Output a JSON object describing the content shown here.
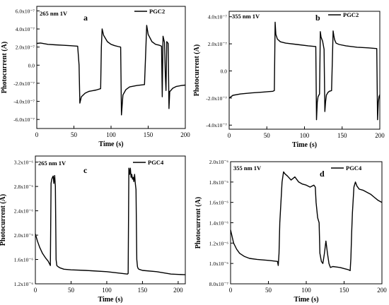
{
  "figure": {
    "panels": [
      {
        "panel_label": "a",
        "annotation": "265 nm 1V",
        "legend_label": "PGC2",
        "xlabel": "Time (s)",
        "ylabel": "Photocurrent (A)",
        "xticks": [
          "0",
          "50",
          "100",
          "150",
          "200"
        ],
        "yticks": [
          "-6.0x10⁻⁷",
          "-4.0x10⁻⁷",
          "-2.0x10⁻⁷",
          "0.0",
          "2.0x10⁻⁷",
          "4.0x10⁻⁷",
          "6.0x10⁻⁷"
        ]
      },
      {
        "panel_label": "b",
        "annotation": "355 nm 1V",
        "legend_label": "PGC2",
        "xlabel": "Time (s)",
        "ylabel": "Photocurrent (A)",
        "xticks": [
          "0",
          "50",
          "100",
          "150",
          "200"
        ],
        "yticks": [
          "-4.0x10⁻⁷",
          "-2.0x10⁻⁷",
          "0.0",
          "2.0x10⁻⁷",
          "4.0x10⁻⁷"
        ]
      },
      {
        "panel_label": "c",
        "annotation": "265 nm 1V",
        "legend_label": "PGC4",
        "xlabel": "Time (s)",
        "ylabel": "Photocurrent (A)",
        "xticks": [
          "0",
          "50",
          "100",
          "150",
          "200"
        ],
        "yticks": [
          "1.2x10⁻⁶",
          "1.6x10⁻⁶",
          "2.0x10⁻⁶",
          "2.4x10⁻⁶",
          "2.8x10⁻⁶",
          "3.2x10⁻⁶"
        ]
      },
      {
        "panel_label": "d",
        "annotation": "355 nm 1V",
        "legend_label": "PGC4",
        "xlabel": "Time (s)",
        "ylabel": "Photocurrent (A)",
        "xticks": [
          "0",
          "50",
          "100",
          "150",
          "200"
        ],
        "yticks": [
          "8.0x10⁻⁷",
          "1.0x10⁻⁶",
          "1.2x10⁻⁶",
          "1.4x10⁻⁶",
          "1.6x10⁻⁶",
          "1.8x10⁻⁶",
          "2.0x10⁻⁶"
        ]
      }
    ]
  },
  "chart_data": [
    {
      "type": "line",
      "panel": "a",
      "title": "",
      "xlabel": "Time (s)",
      "ylabel": "Photocurrent (A)",
      "xlim": [
        0,
        200
      ],
      "ylim": [
        -7e-07,
        6.5e-07
      ],
      "series": [
        {
          "name": "PGC2",
          "color": "#000000",
          "x": [
            0,
            5,
            15,
            25,
            35,
            45,
            55,
            57,
            58,
            60,
            65,
            70,
            80,
            86,
            87,
            88,
            90,
            95,
            100,
            105,
            110,
            113,
            114,
            116,
            120,
            125,
            135,
            145,
            147,
            148,
            150,
            155,
            160,
            165,
            168,
            169,
            170,
            172,
            173,
            174,
            175,
            177,
            178,
            179,
            180,
            183,
            188,
            195,
            200
          ],
          "y": [
            2.4e-07,
            2.45e-07,
            2.3e-07,
            2.25e-07,
            2.2e-07,
            2.15e-07,
            2.1e-07,
            0.0,
            -4.2e-07,
            -3.5e-07,
            -3.1e-07,
            -2.9e-07,
            -2.75e-07,
            -2.6e-07,
            2e-07,
            4e-07,
            3.3e-07,
            2.6e-07,
            2.3e-07,
            2.15e-07,
            2.05e-07,
            2e-07,
            -5.5e-07,
            -3.3e-07,
            -2.7e-07,
            -2.4e-07,
            -2.25e-07,
            -2.15e-07,
            2e-07,
            4.4e-07,
            3.4e-07,
            2.6e-07,
            2.3e-07,
            2.2e-07,
            2.1e-07,
            -3.5e-07,
            3.2e-07,
            2.5e-07,
            -1e-07,
            -2.8e-07,
            2.6e-07,
            2.4e-07,
            -4.8e-07,
            -2.9e-07,
            -2.85e-07,
            -2.55e-07,
            -2.35e-07,
            -2.25e-07,
            -2.2e-07
          ]
        }
      ]
    },
    {
      "type": "line",
      "panel": "b",
      "title": "",
      "xlabel": "Time (s)",
      "ylabel": "Photocurrent (A)",
      "xlim": [
        0,
        200
      ],
      "ylim": [
        -4.3e-07,
        4.4e-07
      ],
      "series": [
        {
          "name": "PGC2",
          "color": "#000000",
          "x": [
            0,
            5,
            15,
            30,
            45,
            58,
            60,
            61,
            62,
            64,
            68,
            75,
            90,
            105,
            115,
            116,
            117,
            118,
            120,
            121,
            122,
            124,
            126,
            127,
            128,
            129,
            131,
            133,
            136,
            138,
            139,
            140,
            142,
            146,
            155,
            170,
            185,
            196,
            197,
            198,
            199,
            200
          ],
          "y": [
            -2e-07,
            -1.8e-07,
            -1.7e-07,
            -1.62e-07,
            -1.56e-07,
            -1.5e-07,
            -1.45e-07,
            3.6e-07,
            2.7e-07,
            2.35e-07,
            2.15e-07,
            2.05e-07,
            1.95e-07,
            1.85e-07,
            1.8e-07,
            -3.6e-07,
            -2.3e-07,
            -1.9e-07,
            -1.7e-07,
            2.9e-07,
            2.5e-07,
            2.2e-07,
            1.6e-07,
            -3e-07,
            -2.3e-07,
            -1.8e-07,
            -1.6e-07,
            -1.5e-07,
            -1.45e-07,
            2.95e-07,
            2.6e-07,
            2.3e-07,
            2.05e-07,
            1.95e-07,
            1.85e-07,
            1.75e-07,
            1.7e-07,
            1.65e-07,
            -3.6e-07,
            -2.3e-07,
            -1.9e-07,
            -1.75e-07
          ]
        }
      ]
    },
    {
      "type": "line",
      "panel": "c",
      "title": "",
      "xlabel": "Time (s)",
      "ylabel": "Photocurrent (A)",
      "xlim": [
        0,
        210
      ],
      "ylim": [
        1.2e-06,
        3.3e-06
      ],
      "series": [
        {
          "name": "PGC4",
          "color": "#000000",
          "x": [
            0,
            3,
            6,
            10,
            14,
            18,
            21,
            22,
            23,
            24,
            25,
            26,
            27,
            28,
            29,
            30,
            31,
            32,
            35,
            40,
            50,
            70,
            100,
            129,
            130,
            131,
            132,
            133,
            134,
            135,
            136,
            137,
            138,
            139,
            140,
            141,
            142,
            143,
            144,
            145,
            150,
            170,
            190,
            210
          ],
          "y": [
            2.02e-06,
            1.9e-06,
            1.8e-06,
            1.7e-06,
            1.63e-06,
            1.57e-06,
            1.5e-06,
            2.85e-06,
            2.92e-06,
            2.95e-06,
            2.97e-06,
            2.85e-06,
            2.98e-06,
            2.8e-06,
            1.6e-06,
            1.5e-06,
            1.49e-06,
            1.48e-06,
            1.46e-06,
            1.44e-06,
            1.43e-06,
            1.42e-06,
            1.4e-06,
            1.36e-06,
            1.37e-06,
            3.1e-06,
            3e-06,
            3.1e-06,
            2.95e-06,
            3e-06,
            2.92e-06,
            2.95e-06,
            2.88e-06,
            3e-06,
            2.85e-06,
            2.75e-06,
            1.6e-06,
            1.48e-06,
            1.45e-06,
            1.44e-06,
            1.42e-06,
            1.4e-06,
            1.36e-06,
            1.35e-06
          ]
        }
      ]
    },
    {
      "type": "line",
      "panel": "d",
      "title": "",
      "xlabel": "Time (s)",
      "ylabel": "Photocurrent (A)",
      "xlim": [
        0,
        200
      ],
      "ylim": [
        8e-07,
        2e-06
      ],
      "series": [
        {
          "name": "PGC4",
          "color": "#000000",
          "x": [
            0,
            4,
            8,
            12,
            18,
            25,
            35,
            50,
            62,
            63,
            64,
            65,
            68,
            70,
            72,
            75,
            80,
            85,
            90,
            95,
            100,
            105,
            110,
            112,
            113,
            115,
            117,
            118,
            120,
            122,
            124,
            126,
            128,
            130,
            132,
            135,
            140,
            145,
            150,
            155,
            158,
            159,
            160,
            161,
            163,
            165,
            167,
            170,
            175,
            180,
            185,
            190,
            195,
            200
          ],
          "y": [
            1.33e-06,
            1.2e-06,
            1.14e-06,
            1.1e-06,
            1.07e-06,
            1.05e-06,
            1.04e-06,
            1.03e-06,
            1.02e-06,
            9.8e-07,
            1.1e-06,
            1.4e-06,
            1.8e-06,
            1.9e-06,
            1.88e-06,
            1.86e-06,
            1.82e-06,
            1.85e-06,
            1.8e-06,
            1.78e-06,
            1.77e-06,
            1.75e-06,
            1.77e-06,
            1.75e-06,
            1.6e-06,
            1.45e-06,
            1.4e-06,
            1.1e-06,
            1.02e-06,
            1e-06,
            1.1e-06,
            1.22e-06,
            1.1e-06,
            1e-06,
            9.6e-07,
            9.7e-07,
            9.65e-07,
            9.6e-07,
            9.5e-07,
            9.4e-07,
            9.3e-07,
            1.05e-06,
            1.3e-06,
            1.5e-06,
            1.75e-06,
            1.8e-06,
            1.76e-06,
            1.73e-06,
            1.72e-06,
            1.7e-06,
            1.68e-06,
            1.65e-06,
            1.62e-06,
            1.6e-06
          ]
        }
      ]
    }
  ]
}
